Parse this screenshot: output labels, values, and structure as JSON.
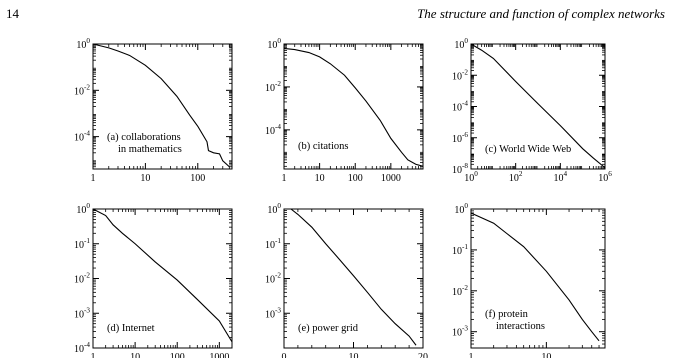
{
  "page": {
    "number": "14",
    "running_head": "The structure and function of complex networks"
  },
  "chart_data": [
    {
      "type": "line",
      "panel_label": "(a) collaborations in mathematics",
      "label_lines": [
        "(a) collaborations",
        "in mathematics"
      ],
      "xscale": "log",
      "yscale": "log",
      "xlim": [
        1,
        450
      ],
      "ylim": [
        4e-06,
        1
      ],
      "xticks": [
        1,
        10,
        100
      ],
      "xticklabels": [
        "1",
        "10",
        "100"
      ],
      "yticks": [
        1,
        0.01,
        0.0001
      ],
      "yticklabels": [
        {
          "b": "10",
          "e": "0"
        },
        {
          "b": "10",
          "e": "-2"
        },
        {
          "b": "10",
          "e": "-4"
        }
      ],
      "x": [
        1,
        2,
        3,
        5,
        10,
        20,
        40,
        70,
        100,
        150,
        160,
        200,
        260,
        300,
        400
      ],
      "y": [
        1,
        0.68,
        0.5,
        0.32,
        0.12,
        0.032,
        0.0055,
        0.00085,
        0.00028,
        6e-05,
        2.5e-05,
        2e-05,
        1.8e-05,
        9e-06,
        5e-06
      ]
    },
    {
      "type": "line",
      "panel_label": "(b) citations",
      "label_lines": [
        "(b) citations"
      ],
      "xscale": "log",
      "yscale": "log",
      "xlim": [
        1,
        8000
      ],
      "ylim": [
        1.5e-06,
        1
      ],
      "xticks": [
        1,
        10,
        100,
        1000
      ],
      "xticklabels": [
        "1",
        "10",
        "100",
        "1000"
      ],
      "yticks": [
        1,
        0.01,
        0.0001
      ],
      "yticklabels": [
        {
          "b": "10",
          "e": "0"
        },
        {
          "b": "10",
          "e": "-2"
        },
        {
          "b": "10",
          "e": "-4"
        }
      ],
      "x": [
        1,
        2,
        5,
        10,
        20,
        50,
        100,
        200,
        500,
        1000,
        2000,
        3000,
        5000,
        8000
      ],
      "y": [
        0.62,
        0.55,
        0.4,
        0.25,
        0.12,
        0.035,
        0.009,
        0.0022,
        0.00028,
        4e-05,
        9e-06,
        4e-06,
        2.5e-06,
        2e-06
      ]
    },
    {
      "type": "line",
      "panel_label": "(c) World Wide Web",
      "label_lines": [
        "(c) World Wide Web"
      ],
      "xscale": "log",
      "yscale": "log",
      "xlim": [
        1,
        1000000
      ],
      "ylim": [
        1e-08,
        1
      ],
      "xticks": [
        1,
        100,
        10000,
        1000000
      ],
      "xticklabels": [
        {
          "b": "10",
          "e": "0"
        },
        {
          "b": "10",
          "e": "2"
        },
        {
          "b": "10",
          "e": "4"
        },
        {
          "b": "10",
          "e": "6"
        }
      ],
      "yticks": [
        1,
        0.01,
        0.0001,
        1e-06,
        1e-08
      ],
      "yticklabels": [
        {
          "b": "10",
          "e": "0"
        },
        {
          "b": "10",
          "e": "-2"
        },
        {
          "b": "10",
          "e": "-4"
        },
        {
          "b": "10",
          "e": "-6"
        },
        {
          "b": "10",
          "e": "-8"
        }
      ],
      "x": [
        1,
        3,
        10,
        100,
        1000,
        10000,
        100000,
        300000,
        1000000
      ],
      "y": [
        1,
        0.4,
        0.12,
        0.004,
        0.00015,
        6e-06,
        2e-07,
        5e-08,
        1.2e-08
      ]
    },
    {
      "type": "line",
      "panel_label": "(d) Internet",
      "label_lines": [
        "(d) Internet"
      ],
      "xscale": "log",
      "yscale": "log",
      "xlim": [
        1,
        2000
      ],
      "ylim": [
        0.0001,
        1
      ],
      "xticks": [
        1,
        10,
        100,
        1000
      ],
      "xticklabels": [
        "1",
        "10",
        "100",
        "1000"
      ],
      "yticks": [
        1,
        0.1,
        0.01,
        0.001,
        0.0001
      ],
      "yticklabels": [
        {
          "b": "10",
          "e": "0"
        },
        {
          "b": "10",
          "e": "-1"
        },
        {
          "b": "10",
          "e": "-2"
        },
        {
          "b": "10",
          "e": "-3"
        },
        {
          "b": "10",
          "e": "-4"
        }
      ],
      "x": [
        1,
        2,
        3,
        5,
        10,
        30,
        100,
        300,
        1000,
        2000
      ],
      "y": [
        1,
        0.65,
        0.35,
        0.2,
        0.1,
        0.03,
        0.009,
        0.0025,
        0.0006,
        0.00015
      ]
    },
    {
      "type": "line",
      "panel_label": "(e) power grid",
      "label_lines": [
        "(e) power grid"
      ],
      "xscale": "linear",
      "yscale": "log",
      "xlim": [
        0,
        20
      ],
      "ylim": [
        0.0001,
        1
      ],
      "xticks": [
        0,
        10,
        20
      ],
      "xticklabels": [
        "0",
        "10",
        "20"
      ],
      "yticks": [
        1,
        0.1,
        0.01,
        0.001
      ],
      "yticklabels": [
        {
          "b": "10",
          "e": "0"
        },
        {
          "b": "10",
          "e": "-1"
        },
        {
          "b": "10",
          "e": "-2"
        },
        {
          "b": "10",
          "e": "-3"
        }
      ],
      "x": [
        1,
        2,
        4,
        6,
        8,
        10,
        12,
        14,
        16,
        18,
        19
      ],
      "y": [
        1,
        0.7,
        0.3,
        0.1,
        0.035,
        0.012,
        0.004,
        0.0013,
        0.0005,
        0.00022,
        0.00012
      ]
    },
    {
      "type": "line",
      "panel_label": "(f) protein interactions",
      "label_lines": [
        "(f) protein",
        "interactions"
      ],
      "xscale": "log",
      "yscale": "log",
      "xlim": [
        1,
        60
      ],
      "ylim": [
        0.0004,
        1
      ],
      "xticks": [
        1,
        10
      ],
      "xticklabels": [
        "1",
        "10"
      ],
      "yticks": [
        1,
        0.1,
        0.01,
        0.001
      ],
      "yticklabels": [
        {
          "b": "10",
          "e": "0"
        },
        {
          "b": "10",
          "e": "-1"
        },
        {
          "b": "10",
          "e": "-2"
        },
        {
          "b": "10",
          "e": "-3"
        }
      ],
      "x": [
        1,
        2,
        3,
        5,
        10,
        20,
        30,
        40,
        50
      ],
      "y": [
        0.8,
        0.45,
        0.25,
        0.12,
        0.03,
        0.006,
        0.002,
        0.001,
        0.0006
      ]
    }
  ]
}
